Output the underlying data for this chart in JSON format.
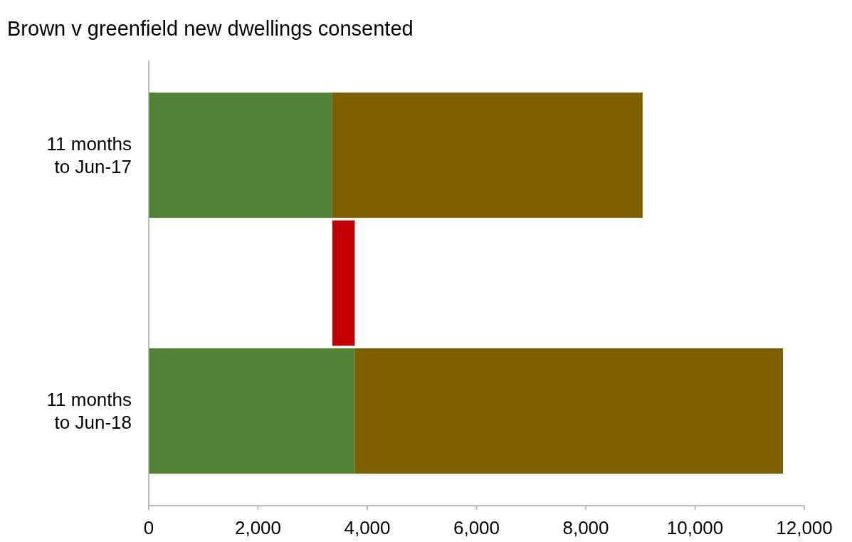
{
  "chart_data": {
    "type": "bar",
    "title": "Brown v greenfield new dwellings consented",
    "orientation": "horizontal",
    "stacked": true,
    "categories": [
      "11 months\nto Jun-17",
      null,
      "11 months\nto Jun-18"
    ],
    "series": [
      {
        "color": "#538135",
        "values": [
          3360,
          null,
          3770
        ]
      },
      {
        "color": "#7f6000",
        "values": [
          5680,
          null,
          7840
        ]
      },
      {
        "color": "#c00000",
        "values": [
          null,
          410,
          null
        ],
        "base": [
          null,
          3360,
          null
        ]
      }
    ],
    "xlim": [
      0,
      12000
    ],
    "xticks": [
      {
        "value": 0,
        "label": "0"
      },
      {
        "value": 2000,
        "label": "2,000"
      },
      {
        "value": 4000,
        "label": "4,000"
      },
      {
        "value": 6000,
        "label": "6,000"
      },
      {
        "value": 8000,
        "label": "8,000"
      },
      {
        "value": 10000,
        "label": "10,000"
      },
      {
        "value": 12000,
        "label": "12,000"
      }
    ]
  }
}
